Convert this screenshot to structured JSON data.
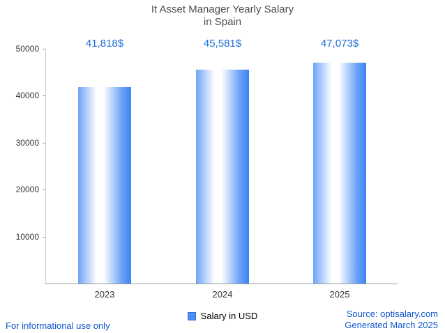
{
  "title": {
    "line1": "It Asset Manager Yearly Salary",
    "line2": "in Spain"
  },
  "chart_data": {
    "type": "bar",
    "categories": [
      "2023",
      "2024",
      "2025"
    ],
    "values": [
      41818,
      45581,
      47073
    ],
    "value_labels": [
      "41,818$",
      "45,581$",
      "47,073$"
    ],
    "series_name": "Salary in USD",
    "title": "It Asset Manager Yearly Salary in Spain",
    "xlabel": "",
    "ylabel": "",
    "ylim": [
      0,
      50000
    ],
    "yticks": [
      10000,
      20000,
      30000,
      40000,
      50000
    ],
    "ytick_labels": [
      "10000",
      "20000",
      "30000",
      "40000",
      "50000"
    ],
    "grid": false,
    "legend_position": "bottom",
    "legend": [
      {
        "label": "Salary in USD",
        "color": "#4a90f7"
      }
    ]
  },
  "footer": {
    "left": "For informational use only",
    "source": "Source: optisalary.com",
    "generated": "Generated March 2025"
  },
  "colors": {
    "title_text": "#4d4d4d",
    "value_label": "#1b6fd8",
    "link_blue": "#1155cc",
    "tick_text": "#333333",
    "axis_line": "#999999",
    "bar_gradient": [
      "#6ea4f8",
      "#ffffff",
      "#3b82f4"
    ]
  }
}
